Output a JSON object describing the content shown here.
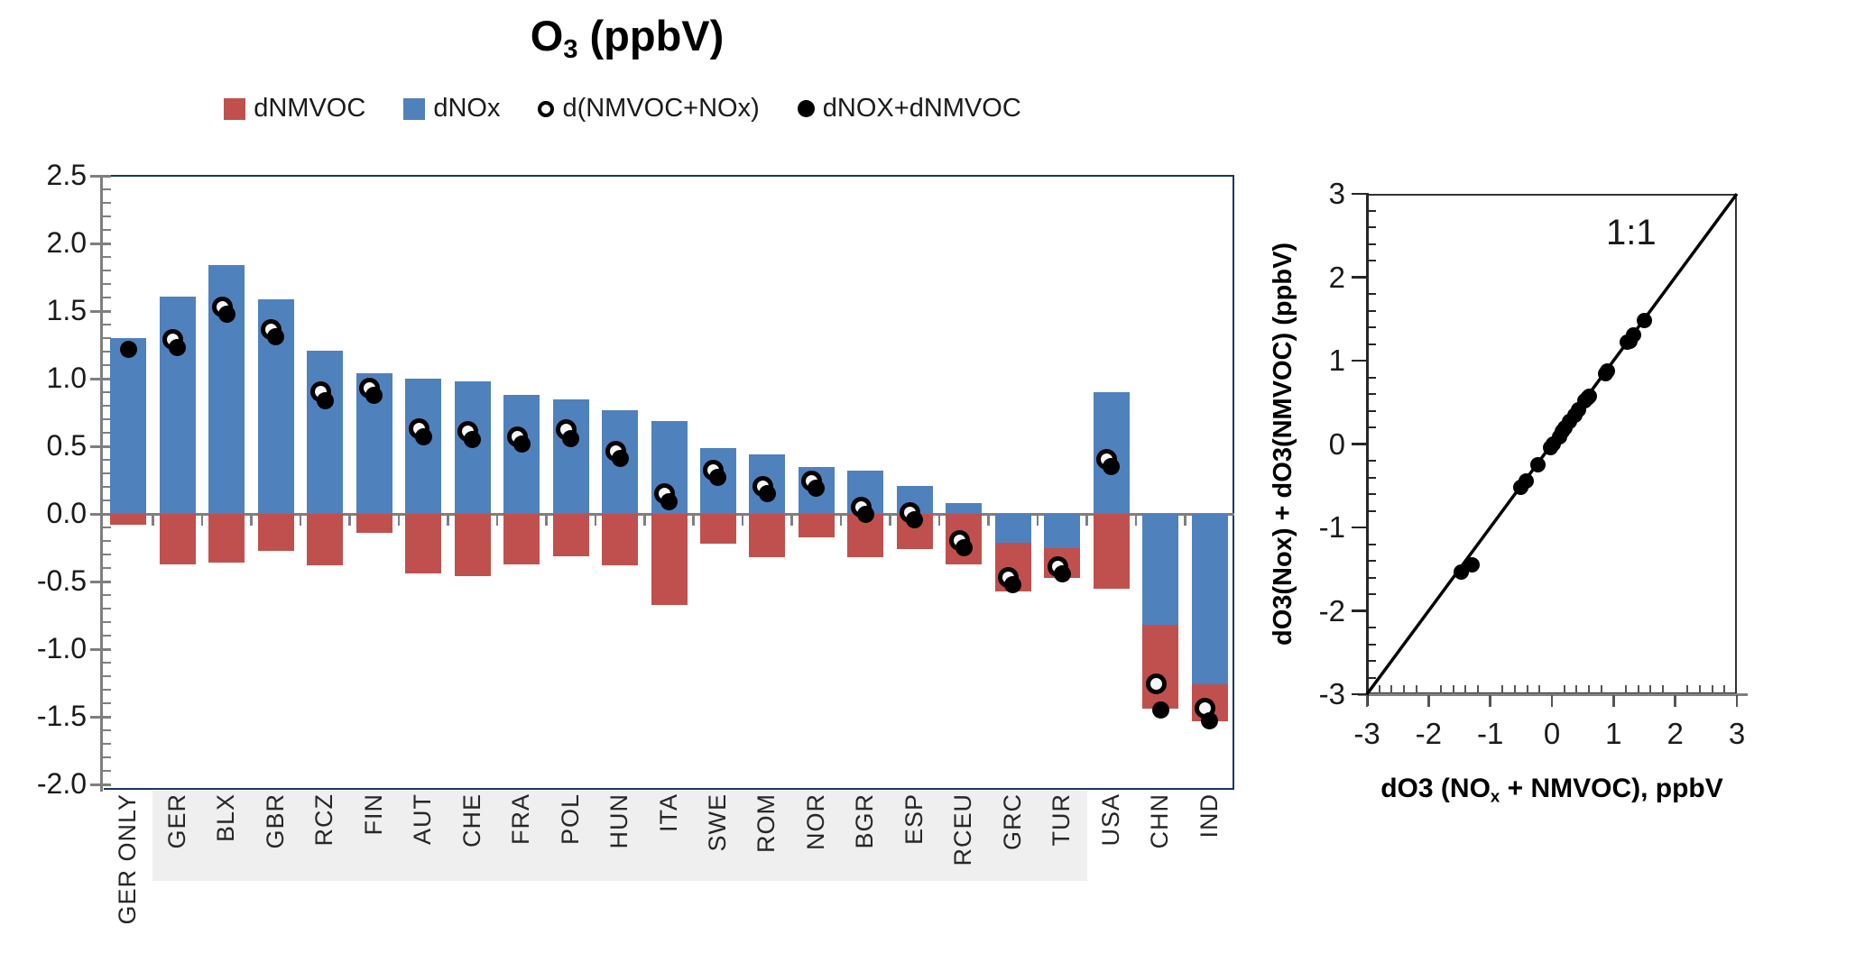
{
  "chart_data": [
    {
      "type": "bar",
      "title": "O3 (ppbV)",
      "title_parts": [
        "O",
        "3",
        " (ppbV)"
      ],
      "categories": [
        "GER ONLY",
        "GER",
        "BLX",
        "GBR",
        "RCZ",
        "FIN",
        "AUT",
        "CHE",
        "FRA",
        "POL",
        "HUN",
        "ITA",
        "SWE",
        "ROM",
        "NOR",
        "BGR",
        "ESP",
        "RCEU",
        "GRC",
        "TUR",
        "USA",
        "CHN",
        "IND"
      ],
      "series": [
        {
          "name": "dNMVOC",
          "color": "#C0504D",
          "values": [
            -0.08,
            -0.37,
            -0.36,
            -0.27,
            -0.38,
            -0.14,
            -0.44,
            -0.46,
            -0.37,
            -0.31,
            -0.38,
            -0.67,
            -0.22,
            -0.32,
            -0.17,
            -0.32,
            -0.26,
            -0.37,
            -0.36,
            -0.22,
            -0.55,
            -0.62,
            -0.27
          ]
        },
        {
          "name": "dNOx",
          "color": "#4F81BD",
          "values": [
            1.3,
            1.61,
            1.84,
            1.59,
            1.21,
            1.04,
            1.0,
            0.98,
            0.88,
            0.85,
            0.77,
            0.69,
            0.49,
            0.44,
            0.35,
            0.32,
            0.21,
            0.08,
            -0.21,
            -0.25,
            0.9,
            -0.82,
            -1.26
          ]
        }
      ],
      "point_series": [
        {
          "name": "d(NMVOC+NOx)",
          "style": "open-circle",
          "values": [
            null,
            1.26,
            1.5,
            1.33,
            0.87,
            0.9,
            0.6,
            0.58,
            0.54,
            0.59,
            0.43,
            0.12,
            0.29,
            0.17,
            0.21,
            0.02,
            -0.02,
            -0.23,
            -0.5,
            -0.42,
            0.37,
            -1.29,
            -1.47
          ]
        },
        {
          "name": "dNOX+dNMVOC",
          "style": "filled-circle",
          "values": [
            1.22,
            1.23,
            1.48,
            1.31,
            0.84,
            0.88,
            0.57,
            0.55,
            0.52,
            0.56,
            0.41,
            0.09,
            0.27,
            0.15,
            0.19,
            0.0,
            -0.04,
            -0.25,
            -0.52,
            -0.44,
            0.35,
            -1.45,
            -1.53
          ]
        }
      ],
      "legend": [
        {
          "label": "dNMVOC",
          "marker": "square",
          "color": "#C0504D"
        },
        {
          "label": "dNOx",
          "marker": "square",
          "color": "#4F81BD"
        },
        {
          "label": "d(NMVOC+NOx)",
          "marker": "open-circle",
          "color": "#000000"
        },
        {
          "label": "dNOX+dNMVOC",
          "marker": "filled-circle",
          "color": "#000000"
        }
      ],
      "ylim": [
        -2.0,
        2.5
      ],
      "ytick_labels": [
        "2.5",
        "2.0",
        "1.5",
        "1.0",
        "0.5",
        "0.0",
        "-0.5",
        "-1.0",
        "-1.5",
        "-2.0"
      ],
      "minor_tick_step": 0.1,
      "grid": false,
      "border_color": "#17375E",
      "axis_color": "#7F7F7F",
      "label_band": {
        "from_category": "GER",
        "to_category": "TUR",
        "color": "#EFEFEF"
      }
    },
    {
      "type": "scatter",
      "xlabel": "dO3 (NOx + NMVOC), ppbV",
      "xlabel_parts": [
        "dO3 (NO",
        "x",
        " + NMVOC), ppbV"
      ],
      "ylabel": "dO3(Nox) + dO3(NMVOC) (ppbV)",
      "annotation": "1:1",
      "xlim": [
        -3,
        3
      ],
      "ylim": [
        -3,
        3
      ],
      "xtick_labels": [
        "-3",
        "-2",
        "-1",
        "0",
        "1",
        "2",
        "3"
      ],
      "ytick_labels": [
        "3",
        "2",
        "1",
        "0",
        "-1",
        "-2",
        "-3"
      ],
      "minor_tick_step": 0.2,
      "line": {
        "name": "1:1 line",
        "from": [
          -3,
          -3
        ],
        "to": [
          3,
          3
        ],
        "color": "#000000"
      },
      "points": [
        [
          1.22,
          1.22
        ],
        [
          1.26,
          1.23
        ],
        [
          1.5,
          1.48
        ],
        [
          1.33,
          1.31
        ],
        [
          0.87,
          0.84
        ],
        [
          0.9,
          0.88
        ],
        [
          0.6,
          0.57
        ],
        [
          0.58,
          0.55
        ],
        [
          0.54,
          0.52
        ],
        [
          0.59,
          0.56
        ],
        [
          0.43,
          0.41
        ],
        [
          0.12,
          0.09
        ],
        [
          0.29,
          0.27
        ],
        [
          0.17,
          0.15
        ],
        [
          0.21,
          0.19
        ],
        [
          0.02,
          0.0
        ],
        [
          -0.02,
          -0.04
        ],
        [
          -0.23,
          -0.25
        ],
        [
          -0.5,
          -0.52
        ],
        [
          -0.42,
          -0.44
        ],
        [
          0.37,
          0.35
        ],
        [
          -1.29,
          -1.45
        ],
        [
          -1.47,
          -1.53
        ]
      ]
    }
  ]
}
